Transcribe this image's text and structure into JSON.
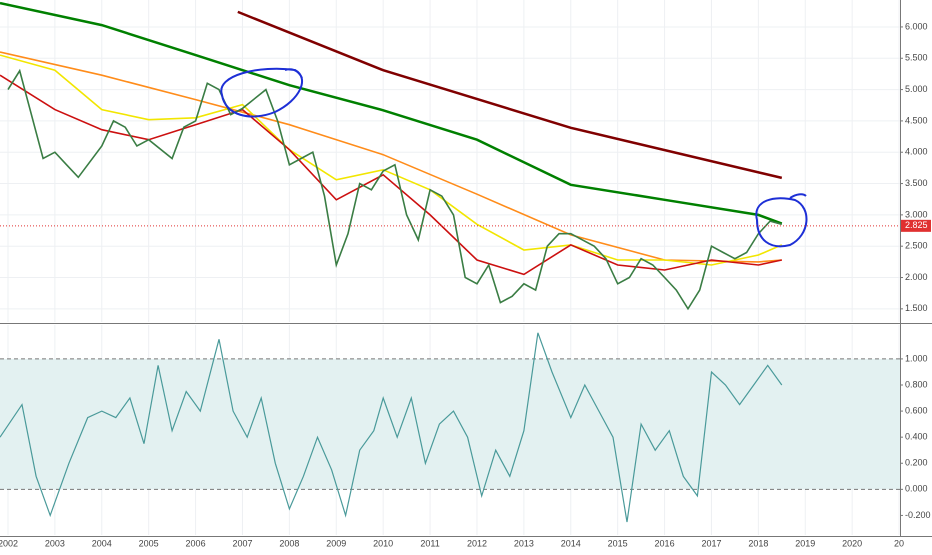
{
  "chart_data": [
    {
      "type": "line",
      "xlim": [
        2001.83,
        2021.02
      ],
      "xticks": [
        2002,
        2003,
        2004,
        2005,
        2006,
        2007,
        2008,
        2009,
        2010,
        2011,
        2012,
        2013,
        2014,
        2015,
        2016,
        2017,
        2018,
        2019,
        2020,
        2021
      ],
      "ylim": [
        1.29,
        6.43
      ],
      "yticks": [
        {
          "value": 1.5,
          "label": "1.500"
        },
        {
          "value": 2,
          "label": "2.000"
        },
        {
          "value": 2.5,
          "label": "2.500"
        },
        {
          "value": 3,
          "label": "3.000"
        },
        {
          "value": 3.5,
          "label": "3.500"
        },
        {
          "value": 4,
          "label": "4.000"
        },
        {
          "value": 4.5,
          "label": "4.500"
        },
        {
          "value": 5,
          "label": "5.000"
        },
        {
          "value": 5.5,
          "label": "5.500"
        },
        {
          "value": 6,
          "label": "6.000"
        }
      ],
      "grid": true,
      "last_price": 2.825,
      "series": [
        {
          "color": "#008000",
          "x": [
            2001.83,
            2004,
            2006,
            2008,
            2010,
            2012,
            2014,
            2016,
            2018,
            2018.5
          ],
          "values": [
            6.38,
            6.03,
            5.55,
            5.07,
            4.67,
            4.2,
            3.48,
            3.24,
            3.0,
            2.86
          ]
        },
        {
          "color": "#800000",
          "x": [
            2006.9,
            2010,
            2014,
            2018.5
          ],
          "values": [
            6.24,
            5.31,
            4.39,
            3.59
          ]
        },
        {
          "color": "#ff8c1a",
          "x": [
            2001.83,
            2004,
            2006,
            2008,
            2010,
            2012,
            2014,
            2016,
            2018,
            2018.5
          ],
          "values": [
            5.6,
            5.23,
            4.84,
            4.44,
            3.96,
            3.33,
            2.68,
            2.28,
            2.25,
            2.28
          ]
        },
        {
          "color": "#f2e600",
          "x": [
            2001.83,
            2003,
            2004,
            2005,
            2006,
            2007,
            2008,
            2009,
            2010,
            2011,
            2012,
            2013,
            2014,
            2015,
            2016,
            2017,
            2018,
            2018.5
          ],
          "values": [
            5.55,
            5.31,
            4.68,
            4.52,
            4.55,
            4.76,
            4.04,
            3.56,
            3.72,
            3.4,
            2.85,
            2.44,
            2.52,
            2.28,
            2.28,
            2.2,
            2.36,
            2.52
          ]
        },
        {
          "color": "#cc1010",
          "x": [
            2001.83,
            2003,
            2004,
            2005,
            2006,
            2007,
            2008,
            2009,
            2010,
            2011,
            2012,
            2013,
            2014,
            2015,
            2016,
            2017,
            2018,
            2018.5
          ],
          "values": [
            5.23,
            4.68,
            4.36,
            4.2,
            4.44,
            4.68,
            4.04,
            3.24,
            3.64,
            3.0,
            2.28,
            2.05,
            2.52,
            2.2,
            2.12,
            2.28,
            2.2,
            2.28
          ]
        },
        {
          "color": "#3a7d44",
          "x": [
            2002,
            2002.25,
            2002.5,
            2002.75,
            2003,
            2003.25,
            2003.5,
            2004,
            2004.25,
            2004.5,
            2004.75,
            2005,
            2005.5,
            2005.75,
            2006,
            2006.25,
            2006.5,
            2006.75,
            2007,
            2007.5,
            2007.75,
            2008,
            2008.25,
            2008.5,
            2008.75,
            2009,
            2009.25,
            2009.5,
            2009.75,
            2010,
            2010.25,
            2010.5,
            2010.75,
            2011,
            2011.25,
            2011.5,
            2011.75,
            2012,
            2012.25,
            2012.5,
            2012.75,
            2013,
            2013.25,
            2013.5,
            2013.75,
            2014,
            2014.25,
            2014.5,
            2014.75,
            2015,
            2015.25,
            2015.5,
            2015.75,
            2016,
            2016.25,
            2016.5,
            2016.75,
            2017,
            2017.25,
            2017.5,
            2017.75,
            2018,
            2018.25,
            2018.5
          ],
          "values": [
            5.0,
            5.3,
            4.6,
            3.9,
            4.0,
            3.8,
            3.6,
            4.1,
            4.5,
            4.4,
            4.1,
            4.2,
            3.9,
            4.4,
            4.5,
            5.1,
            5.0,
            4.6,
            4.7,
            5.0,
            4.5,
            3.8,
            3.9,
            4.0,
            3.3,
            2.2,
            2.7,
            3.5,
            3.4,
            3.7,
            3.8,
            3.0,
            2.6,
            3.4,
            3.3,
            3.0,
            2.0,
            1.9,
            2.2,
            1.6,
            1.7,
            1.9,
            1.8,
            2.5,
            2.7,
            2.7,
            2.6,
            2.5,
            2.3,
            1.9,
            2.0,
            2.3,
            2.2,
            2.0,
            1.8,
            1.5,
            1.8,
            2.5,
            2.4,
            2.3,
            2.4,
            2.7,
            2.9,
            2.85
          ]
        }
      ]
    },
    {
      "type": "line",
      "xlim": [
        2001.83,
        2021.02
      ],
      "xticks": [
        2002,
        2003,
        2004,
        2005,
        2006,
        2007,
        2008,
        2009,
        2010,
        2011,
        2012,
        2013,
        2014,
        2015,
        2016,
        2017,
        2018,
        2019,
        2020,
        {
          "value": 2021,
          "label": "20"
        }
      ],
      "ylim": [
        -0.35,
        1.26
      ],
      "yticks": [
        {
          "value": -0.2,
          "label": "-0.200"
        },
        {
          "value": 0,
          "label": "0.000"
        },
        {
          "value": 0.2,
          "label": "0.200"
        },
        {
          "value": 0.4,
          "label": "0.400"
        },
        {
          "value": 0.6,
          "label": "0.600"
        },
        {
          "value": 0.8,
          "label": "0.800"
        },
        {
          "value": 1,
          "label": "1.000"
        }
      ],
      "band": [
        0,
        1
      ],
      "color": "#4a9a9a",
      "x": [
        2001.83,
        2002.3,
        2002.6,
        2002.9,
        2003.3,
        2003.7,
        2004,
        2004.3,
        2004.6,
        2004.9,
        2005.2,
        2005.5,
        2005.8,
        2006.1,
        2006.5,
        2006.8,
        2007.1,
        2007.4,
        2007.7,
        2008,
        2008.3,
        2008.6,
        2008.9,
        2009.2,
        2009.5,
        2009.8,
        2010,
        2010.3,
        2010.6,
        2010.9,
        2011.2,
        2011.5,
        2011.8,
        2012.1,
        2012.4,
        2012.7,
        2013,
        2013.3,
        2013.6,
        2014,
        2014.3,
        2014.6,
        2014.9,
        2015.2,
        2015.5,
        2015.8,
        2016.1,
        2016.4,
        2016.7,
        2017,
        2017.3,
        2017.6,
        2017.9,
        2018.2,
        2018.5
      ],
      "values": [
        0.4,
        0.65,
        0.1,
        -0.2,
        0.2,
        0.55,
        0.6,
        0.55,
        0.7,
        0.35,
        0.95,
        0.45,
        0.75,
        0.6,
        1.15,
        0.6,
        0.4,
        0.7,
        0.2,
        -0.15,
        0.1,
        0.4,
        0.15,
        -0.2,
        0.3,
        0.45,
        0.7,
        0.4,
        0.7,
        0.2,
        0.5,
        0.6,
        0.4,
        -0.05,
        0.3,
        0.1,
        0.45,
        1.2,
        0.9,
        0.55,
        0.8,
        0.6,
        0.4,
        -0.25,
        0.5,
        0.3,
        0.45,
        0.1,
        -0.05,
        0.9,
        0.8,
        0.65,
        0.8,
        0.95,
        0.8
      ]
    }
  ]
}
